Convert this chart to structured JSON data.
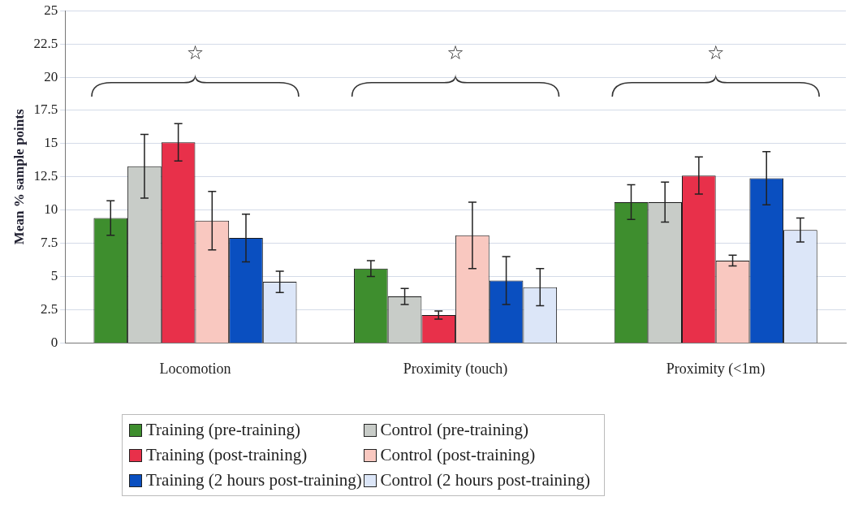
{
  "chart_data": {
    "type": "bar",
    "ylabel": "Mean % sample points",
    "categories": [
      "Locomotion",
      "Proximity (touch)",
      "Proximity (<1m)"
    ],
    "series": [
      {
        "name": "Training (pre-training)",
        "color": "#3e8e2e",
        "values": [
          9.4,
          5.6,
          10.6
        ],
        "errors": [
          1.3,
          0.6,
          1.3
        ]
      },
      {
        "name": "Control (pre-training)",
        "color": "#c8ccc8",
        "values": [
          13.3,
          3.5,
          10.6
        ],
        "errors": [
          2.4,
          0.6,
          1.5
        ]
      },
      {
        "name": "Training (post-training)",
        "color": "#e8304a",
        "values": [
          15.1,
          2.1,
          12.6
        ],
        "errors": [
          1.4,
          0.3,
          1.4
        ]
      },
      {
        "name": "Control (post-training)",
        "color": "#f9c8c0",
        "values": [
          9.2,
          8.1,
          6.2
        ],
        "errors": [
          2.2,
          2.5,
          0.4
        ]
      },
      {
        "name": "Training (2 hours post-training)",
        "color": "#0a4fc0",
        "values": [
          7.9,
          4.7,
          12.4
        ],
        "errors": [
          1.8,
          1.8,
          2.0
        ]
      },
      {
        "name": "Control (2 hours post-training)",
        "color": "#dce6f8",
        "values": [
          4.6,
          4.2,
          8.5
        ],
        "errors": [
          0.8,
          1.4,
          0.9
        ]
      }
    ],
    "ylim": [
      0,
      25
    ],
    "yticks": [
      0,
      2.5,
      5,
      7.5,
      10,
      12.5,
      15,
      17.5,
      20,
      22.5,
      25
    ],
    "grid": "y",
    "legend": "bottom",
    "annotations": [
      "☆",
      "☆",
      "☆"
    ]
  }
}
